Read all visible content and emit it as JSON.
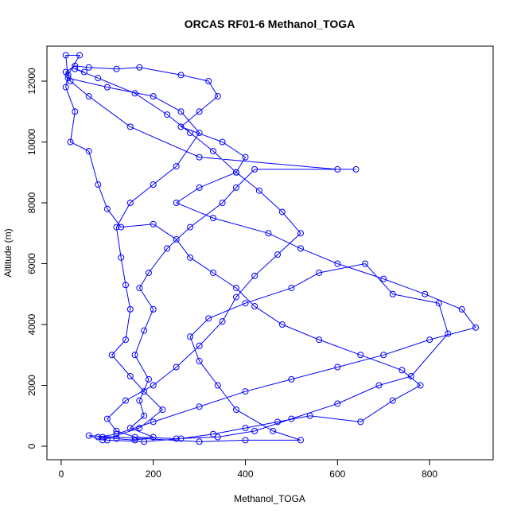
{
  "chart_data": {
    "type": "line",
    "markers": true,
    "title": "ORCAS RF01-6 Methanol_TOGA",
    "x_label": "Methanol_TOGA",
    "y_label": "Altitude (m)",
    "color": "#0000ff",
    "xlim": [
      -31,
      938
    ],
    "ylim": [
      -444,
      13150
    ],
    "xticks": [
      0,
      200,
      400,
      600,
      800
    ],
    "yticks": [
      0,
      2000,
      4000,
      6000,
      8000,
      10000,
      12000
    ],
    "x": [
      90,
      120,
      160,
      200,
      150,
      180,
      170,
      190,
      160,
      180,
      200,
      170,
      190,
      230,
      280,
      350,
      380,
      420,
      640,
      600,
      300,
      150,
      60,
      20,
      10,
      30,
      60,
      120,
      170,
      260,
      320,
      340,
      300,
      260,
      350,
      400,
      380,
      300,
      250,
      330,
      450,
      520,
      600,
      700,
      790,
      870,
      900,
      800,
      700,
      600,
      500,
      400,
      300,
      200,
      120,
      80,
      100,
      180,
      260,
      330,
      400,
      470,
      540,
      650,
      720,
      780,
      740,
      650,
      560,
      480,
      420,
      380,
      330,
      280,
      250,
      200,
      130,
      100,
      80,
      60,
      20,
      30,
      10,
      15,
      40,
      10,
      15,
      100,
      200,
      260,
      300,
      250,
      200,
      150,
      120,
      130,
      140,
      150,
      140,
      110,
      150,
      180,
      220,
      170,
      90,
      60,
      300,
      400,
      520,
      460,
      380,
      340,
      300,
      280,
      320,
      400,
      500,
      560,
      660,
      720,
      820,
      840,
      760,
      690,
      600,
      500,
      420,
      340,
      250,
      160,
      120,
      100,
      140,
      200,
      250,
      300,
      350,
      380,
      420,
      470,
      520,
      480,
      430,
      380,
      330,
      280,
      230,
      160,
      80,
      30,
      50
    ],
    "values": [
      300,
      250,
      200,
      300,
      600,
      1000,
      1500,
      2200,
      3000,
      3800,
      4500,
      5200,
      5700,
      6500,
      7200,
      8000,
      8500,
      9100,
      9100,
      9100,
      9500,
      10500,
      11500,
      12000,
      12300,
      12500,
      12450,
      12400,
      12450,
      12200,
      12000,
      11500,
      11000,
      10500,
      10000,
      9500,
      9000,
      8500,
      8000,
      7500,
      7000,
      6500,
      6000,
      5500,
      5000,
      4500,
      3900,
      3500,
      3000,
      2600,
      2200,
      1800,
      1300,
      800,
      400,
      300,
      200,
      150,
      250,
      400,
      600,
      800,
      1000,
      800,
      1500,
      2000,
      2500,
      3000,
      3500,
      4000,
      4600,
      5200,
      5700,
      6200,
      6800,
      7300,
      7200,
      7800,
      8600,
      9700,
      10000,
      11000,
      11800,
      12200,
      12850,
      12850,
      12100,
      11800,
      11500,
      11000,
      10300,
      9200,
      8600,
      8000,
      7200,
      6200,
      5300,
      4500,
      3500,
      3000,
      2300,
      1800,
      1200,
      600,
      200,
      350,
      150,
      200,
      200,
      500,
      1200,
      2000,
      2800,
      3600,
      4200,
      4700,
      5200,
      5700,
      6000,
      5000,
      4700,
      3700,
      2300,
      2000,
      1400,
      900,
      500,
      300,
      250,
      300,
      500,
      900,
      1500,
      2000,
      2600,
      3300,
      4100,
      4900,
      5600,
      6300,
      7000,
      7700,
      8400,
      9000,
      9700,
      10300,
      10900,
      11600,
      12100,
      12400,
      12300
    ]
  }
}
